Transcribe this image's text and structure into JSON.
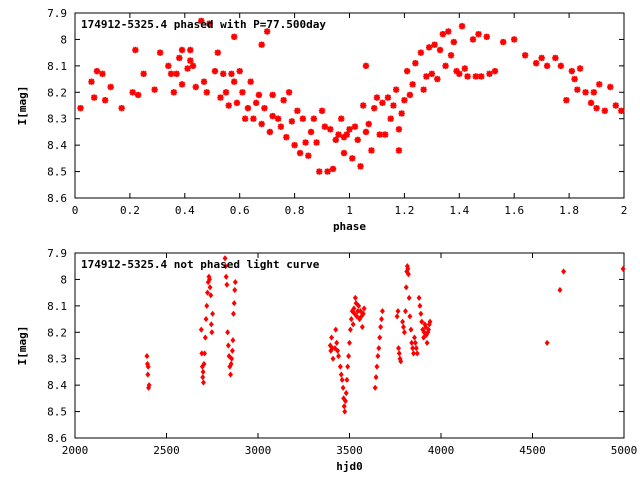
{
  "chart_data": [
    {
      "type": "scatter",
      "title": "174912-5325.4 phased with P=77.500day",
      "xlabel": "phase",
      "ylabel": "I[mag]",
      "xlim": [
        0,
        2
      ],
      "ylim": [
        8.6,
        7.9
      ],
      "y_inverted": true,
      "grid": false,
      "x_ticks": [
        0,
        0.2,
        0.4,
        0.6,
        0.8,
        1,
        1.2,
        1.4,
        1.6,
        1.8,
        2
      ],
      "x_tick_labels": [
        "0",
        "0.2",
        "0.4",
        "0.6",
        "0.8",
        "1",
        "1.2",
        "1.4",
        "1.6",
        "1.8",
        "2"
      ],
      "y_ticks": [
        7.9,
        8,
        8.1,
        8.2,
        8.3,
        8.4,
        8.5,
        8.6
      ],
      "y_tick_labels": [
        "7.9",
        "8",
        "8.1",
        "8.2",
        "8.3",
        "8.4",
        "8.5",
        "8.6"
      ],
      "marker": "star",
      "color": "#ff0000",
      "points": [
        [
          0.02,
          8.26
        ],
        [
          0.06,
          8.16
        ],
        [
          0.07,
          8.22
        ],
        [
          0.08,
          8.12
        ],
        [
          0.1,
          8.13
        ],
        [
          0.11,
          8.23
        ],
        [
          0.13,
          8.18
        ],
        [
          0.17,
          8.26
        ],
        [
          0.21,
          8.2
        ],
        [
          0.22,
          8.04
        ],
        [
          0.23,
          8.21
        ],
        [
          0.25,
          8.13
        ],
        [
          0.29,
          8.19
        ],
        [
          0.31,
          8.05
        ],
        [
          0.34,
          8.1
        ],
        [
          0.35,
          8.13
        ],
        [
          0.36,
          8.2
        ],
        [
          0.37,
          8.13
        ],
        [
          0.38,
          8.07
        ],
        [
          0.39,
          8.17
        ],
        [
          0.39,
          8.04
        ],
        [
          0.41,
          8.11
        ],
        [
          0.42,
          8.04
        ],
        [
          0.42,
          8.08
        ],
        [
          0.43,
          8.1
        ],
        [
          0.44,
          8.18
        ],
        [
          0.46,
          7.93
        ],
        [
          0.47,
          8.16
        ],
        [
          0.48,
          8.2
        ],
        [
          0.49,
          7.94
        ],
        [
          0.51,
          8.12
        ],
        [
          0.52,
          8.05
        ],
        [
          0.53,
          8.22
        ],
        [
          0.54,
          8.13
        ],
        [
          0.55,
          8.2
        ],
        [
          0.56,
          8.25
        ],
        [
          0.57,
          8.13
        ],
        [
          0.58,
          7.99
        ],
        [
          0.58,
          8.16
        ],
        [
          0.59,
          8.24
        ],
        [
          0.6,
          8.12
        ],
        [
          0.61,
          8.2
        ],
        [
          0.62,
          8.3
        ],
        [
          0.63,
          8.26
        ],
        [
          0.64,
          8.16
        ],
        [
          0.65,
          8.3
        ],
        [
          0.66,
          8.24
        ],
        [
          0.67,
          8.21
        ],
        [
          0.68,
          8.02
        ],
        [
          0.68,
          8.32
        ],
        [
          0.69,
          8.26
        ],
        [
          0.7,
          7.97
        ],
        [
          0.71,
          8.35
        ],
        [
          0.72,
          8.29
        ],
        [
          0.72,
          8.21
        ],
        [
          0.74,
          8.3
        ],
        [
          0.75,
          8.33
        ],
        [
          0.76,
          8.23
        ],
        [
          0.77,
          8.37
        ],
        [
          0.78,
          8.2
        ],
        [
          0.79,
          8.31
        ],
        [
          0.8,
          8.4
        ],
        [
          0.81,
          8.27
        ],
        [
          0.82,
          8.43
        ],
        [
          0.83,
          8.3
        ],
        [
          0.84,
          8.39
        ],
        [
          0.85,
          8.44
        ],
        [
          0.86,
          8.35
        ],
        [
          0.87,
          8.3
        ],
        [
          0.88,
          8.39
        ],
        [
          0.89,
          8.5
        ],
        [
          0.9,
          8.27
        ],
        [
          0.91,
          8.33
        ],
        [
          0.92,
          8.5
        ],
        [
          0.93,
          8.34
        ],
        [
          0.94,
          8.49
        ],
        [
          0.95,
          8.38
        ],
        [
          0.96,
          8.36
        ],
        [
          0.97,
          8.3
        ],
        [
          0.98,
          8.43
        ],
        [
          0.98,
          8.37
        ],
        [
          0.99,
          8.36
        ],
        [
          1.0,
          8.34
        ],
        [
          1.01,
          8.45
        ],
        [
          1.02,
          8.33
        ],
        [
          1.03,
          8.38
        ],
        [
          1.04,
          8.48
        ],
        [
          1.05,
          8.25
        ],
        [
          1.06,
          8.35
        ],
        [
          1.06,
          8.1
        ],
        [
          1.07,
          8.32
        ],
        [
          1.08,
          8.42
        ],
        [
          1.09,
          8.26
        ],
        [
          1.1,
          8.22
        ],
        [
          1.11,
          8.36
        ],
        [
          1.12,
          8.24
        ],
        [
          1.13,
          8.36
        ],
        [
          1.14,
          8.22
        ],
        [
          1.15,
          8.3
        ],
        [
          1.16,
          8.25
        ],
        [
          1.17,
          8.19
        ],
        [
          1.18,
          8.34
        ],
        [
          1.18,
          8.42
        ],
        [
          1.19,
          8.28
        ],
        [
          1.2,
          8.23
        ],
        [
          1.21,
          8.12
        ],
        [
          1.22,
          8.21
        ],
        [
          1.23,
          8.17
        ],
        [
          1.24,
          8.09
        ],
        [
          1.26,
          8.05
        ],
        [
          1.27,
          8.19
        ],
        [
          1.28,
          8.14
        ],
        [
          1.29,
          8.03
        ],
        [
          1.3,
          8.13
        ],
        [
          1.31,
          8.02
        ],
        [
          1.32,
          8.15
        ],
        [
          1.33,
          8.04
        ],
        [
          1.34,
          7.98
        ],
        [
          1.35,
          8.1
        ],
        [
          1.36,
          7.97
        ],
        [
          1.37,
          8.06
        ],
        [
          1.38,
          8.01
        ],
        [
          1.39,
          8.12
        ],
        [
          1.4,
          8.13
        ],
        [
          1.41,
          7.95
        ],
        [
          1.42,
          8.11
        ],
        [
          1.43,
          8.14
        ],
        [
          1.45,
          8.0
        ],
        [
          1.46,
          8.14
        ],
        [
          1.47,
          7.98
        ],
        [
          1.48,
          8.14
        ],
        [
          1.5,
          7.99
        ],
        [
          1.51,
          8.13
        ],
        [
          1.53,
          8.12
        ],
        [
          1.56,
          8.01
        ],
        [
          1.6,
          8.0
        ],
        [
          1.64,
          8.06
        ],
        [
          1.68,
          8.09
        ],
        [
          1.7,
          8.07
        ],
        [
          1.72,
          8.1
        ],
        [
          1.75,
          8.07
        ],
        [
          1.77,
          8.1
        ],
        [
          1.79,
          8.23
        ],
        [
          1.81,
          8.12
        ],
        [
          1.82,
          8.15
        ],
        [
          1.83,
          8.19
        ],
        [
          1.84,
          8.11
        ],
        [
          1.86,
          8.2
        ],
        [
          1.88,
          8.24
        ],
        [
          1.89,
          8.2
        ],
        [
          1.9,
          8.26
        ],
        [
          1.91,
          8.17
        ],
        [
          1.93,
          8.27
        ],
        [
          1.95,
          8.18
        ],
        [
          1.97,
          8.25
        ],
        [
          1.99,
          8.27
        ]
      ]
    },
    {
      "type": "scatter",
      "title": "174912-5325.4 not phased light curve",
      "xlabel": "hjd0",
      "ylabel": "I[mag]",
      "xlim": [
        2000,
        5000
      ],
      "ylim": [
        8.6,
        7.9
      ],
      "y_inverted": true,
      "grid": false,
      "x_ticks": [
        2000,
        2500,
        3000,
        3500,
        4000,
        4500,
        5000
      ],
      "x_tick_labels": [
        "2000",
        "2500",
        "3000",
        "3500",
        "4000",
        "4500",
        "5000"
      ],
      "y_ticks": [
        7.9,
        8,
        8.1,
        8.2,
        8.3,
        8.4,
        8.5,
        8.6
      ],
      "y_tick_labels": [
        "7.9",
        "8",
        "8.1",
        "8.2",
        "8.3",
        "8.4",
        "8.5",
        "8.6"
      ],
      "marker": "diamond",
      "color": "#ff0000",
      "points": [
        [
          2393,
          8.29
        ],
        [
          2396,
          8.32
        ],
        [
          2398,
          8.36
        ],
        [
          2400,
          8.33
        ],
        [
          2402,
          8.41
        ],
        [
          2405,
          8.4
        ],
        [
          2690,
          8.19
        ],
        [
          2693,
          8.28
        ],
        [
          2696,
          8.33
        ],
        [
          2698,
          8.37
        ],
        [
          2700,
          8.35
        ],
        [
          2702,
          8.39
        ],
        [
          2705,
          8.32
        ],
        [
          2708,
          8.28
        ],
        [
          2712,
          8.22
        ],
        [
          2716,
          8.15
        ],
        [
          2720,
          8.1
        ],
        [
          2724,
          8.05
        ],
        [
          2728,
          8.01
        ],
        [
          2732,
          7.99
        ],
        [
          2735,
          8.0
        ],
        [
          2738,
          8.03
        ],
        [
          2742,
          8.06
        ],
        [
          2745,
          8.17
        ],
        [
          2748,
          8.2
        ],
        [
          2752,
          8.13
        ],
        [
          2820,
          7.92
        ],
        [
          2823,
          7.95
        ],
        [
          2826,
          7.99
        ],
        [
          2830,
          8.02
        ],
        [
          2834,
          8.2
        ],
        [
          2838,
          8.25
        ],
        [
          2842,
          8.29
        ],
        [
          2846,
          8.33
        ],
        [
          2850,
          8.36
        ],
        [
          2853,
          8.32
        ],
        [
          2856,
          8.3
        ],
        [
          2860,
          8.27
        ],
        [
          2863,
          8.23
        ],
        [
          2866,
          8.13
        ],
        [
          2870,
          8.09
        ],
        [
          2873,
          8.04
        ],
        [
          2876,
          8.01
        ],
        [
          3395,
          8.25
        ],
        [
          3398,
          8.27
        ],
        [
          3402,
          8.22
        ],
        [
          3405,
          8.26
        ],
        [
          3410,
          8.3
        ],
        [
          3420,
          8.26
        ],
        [
          3425,
          8.19
        ],
        [
          3430,
          8.24
        ],
        [
          3435,
          8.27
        ],
        [
          3440,
          8.29
        ],
        [
          3450,
          8.33
        ],
        [
          3455,
          8.36
        ],
        [
          3460,
          8.38
        ],
        [
          3465,
          8.41
        ],
        [
          3468,
          8.45
        ],
        [
          3471,
          8.48
        ],
        [
          3474,
          8.5
        ],
        [
          3478,
          8.46
        ],
        [
          3482,
          8.43
        ],
        [
          3486,
          8.38
        ],
        [
          3490,
          8.33
        ],
        [
          3495,
          8.29
        ],
        [
          3500,
          8.24
        ],
        [
          3505,
          8.19
        ],
        [
          3510,
          8.15
        ],
        [
          3515,
          8.12
        ],
        [
          3520,
          8.17
        ],
        [
          3524,
          8.11
        ],
        [
          3528,
          8.13
        ],
        [
          3532,
          8.07
        ],
        [
          3536,
          8.09
        ],
        [
          3540,
          8.14
        ],
        [
          3545,
          8.12
        ],
        [
          3550,
          8.1
        ],
        [
          3555,
          8.15
        ],
        [
          3560,
          8.12
        ],
        [
          3565,
          8.14
        ],
        [
          3570,
          8.18
        ],
        [
          3575,
          8.13
        ],
        [
          3580,
          8.11
        ],
        [
          3640,
          8.41
        ],
        [
          3645,
          8.37
        ],
        [
          3650,
          8.33
        ],
        [
          3655,
          8.29
        ],
        [
          3660,
          8.26
        ],
        [
          3665,
          8.22
        ],
        [
          3670,
          8.18
        ],
        [
          3675,
          8.15
        ],
        [
          3680,
          8.12
        ],
        [
          3760,
          8.14
        ],
        [
          3765,
          8.12
        ],
        [
          3768,
          8.26
        ],
        [
          3772,
          8.28
        ],
        [
          3776,
          8.3
        ],
        [
          3780,
          8.31
        ],
        [
          3790,
          8.16
        ],
        [
          3795,
          8.18
        ],
        [
          3800,
          8.2
        ],
        [
          3806,
          8.12
        ],
        [
          3810,
          8.03
        ],
        [
          3813,
          7.97
        ],
        [
          3816,
          7.95
        ],
        [
          3819,
          7.96
        ],
        [
          3822,
          7.98
        ],
        [
          3826,
          8.07
        ],
        [
          3830,
          8.14
        ],
        [
          3836,
          8.19
        ],
        [
          3840,
          8.24
        ],
        [
          3845,
          8.26
        ],
        [
          3850,
          8.28
        ],
        [
          3855,
          8.22
        ],
        [
          3860,
          8.24
        ],
        [
          3865,
          8.26
        ],
        [
          3870,
          8.28
        ],
        [
          3880,
          8.07
        ],
        [
          3885,
          8.1
        ],
        [
          3890,
          8.13
        ],
        [
          3895,
          8.16
        ],
        [
          3900,
          8.19
        ],
        [
          3905,
          8.22
        ],
        [
          3908,
          8.2
        ],
        [
          3912,
          8.17
        ],
        [
          3916,
          8.18
        ],
        [
          3920,
          8.21
        ],
        [
          3924,
          8.24
        ],
        [
          3928,
          8.2
        ],
        [
          3932,
          8.19
        ],
        [
          3936,
          8.17
        ],
        [
          3940,
          8.16
        ],
        [
          4580,
          8.24
        ],
        [
          4650,
          8.04
        ],
        [
          4670,
          7.97
        ],
        [
          4995,
          7.96
        ]
      ]
    }
  ]
}
